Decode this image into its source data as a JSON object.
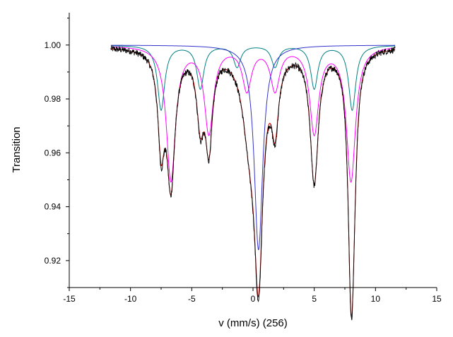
{
  "chart_data": {
    "type": "line",
    "title": "",
    "xlabel": "v (mm/s) (256)",
    "ylabel": "Transition",
    "xlim": [
      -15,
      15
    ],
    "ylim": [
      0.91,
      1.012
    ],
    "x_ticks": [
      -15,
      -10,
      -5,
      0,
      5,
      10,
      15
    ],
    "x_tick_labels": [
      "-15",
      "-10",
      "-5",
      "0",
      "5",
      "10",
      "15"
    ],
    "y_ticks": [
      0.92,
      0.94,
      0.96,
      0.98,
      1.0
    ],
    "y_tick_labels": [
      "0.92",
      "0.94",
      "0.96",
      "0.98",
      "1.00"
    ],
    "grid": false,
    "legend": "none",
    "x_range": [
      -11.6,
      11.6
    ],
    "series": [
      {
        "role": "measured",
        "color": "#000000",
        "baseline": 0.9995,
        "noise": 0.0012,
        "lines": [
          {
            "center": -7.5,
            "depth": 0.034,
            "width": 0.32
          },
          {
            "center": -6.7,
            "depth": 0.049,
            "width": 0.4
          },
          {
            "center": -4.3,
            "depth": 0.025,
            "width": 0.35
          },
          {
            "center": -3.6,
            "depth": 0.034,
            "width": 0.35
          },
          {
            "center": -0.3,
            "depth": 0.026,
            "width": 0.7
          },
          {
            "center": 0.45,
            "depth": 0.08,
            "width": 0.42
          },
          {
            "center": 1.8,
            "depth": 0.026,
            "width": 0.35
          },
          {
            "center": 5.0,
            "depth": 0.049,
            "width": 0.4
          },
          {
            "center": 8.0,
            "depth": 0.078,
            "width": 0.3
          },
          {
            "center": 8.2,
            "depth": 0.03,
            "width": 0.3
          }
        ]
      },
      {
        "role": "fit-total",
        "color": "#cc0000",
        "baseline": 0.9995,
        "lines": [
          {
            "center": -7.5,
            "depth": 0.033,
            "width": 0.32
          },
          {
            "center": -6.7,
            "depth": 0.049,
            "width": 0.4
          },
          {
            "center": -4.3,
            "depth": 0.024,
            "width": 0.35
          },
          {
            "center": -3.6,
            "depth": 0.034,
            "width": 0.35
          },
          {
            "center": -0.3,
            "depth": 0.026,
            "width": 0.7
          },
          {
            "center": 0.45,
            "depth": 0.078,
            "width": 0.42
          },
          {
            "center": 1.8,
            "depth": 0.025,
            "width": 0.35
          },
          {
            "center": 5.0,
            "depth": 0.049,
            "width": 0.4
          },
          {
            "center": 8.0,
            "depth": 0.077,
            "width": 0.3
          },
          {
            "center": 8.2,
            "depth": 0.03,
            "width": 0.3
          }
        ]
      },
      {
        "role": "sextet-1",
        "color": "#ff00ff",
        "baseline": 1.0,
        "lines": [
          {
            "center": -6.7,
            "depth": 0.05,
            "width": 0.45
          },
          {
            "center": -3.6,
            "depth": 0.032,
            "width": 0.45
          },
          {
            "center": -0.5,
            "depth": 0.016,
            "width": 0.45
          },
          {
            "center": 1.8,
            "depth": 0.016,
            "width": 0.45
          },
          {
            "center": 5.0,
            "depth": 0.032,
            "width": 0.45
          },
          {
            "center": 8.0,
            "depth": 0.05,
            "width": 0.45
          }
        ]
      },
      {
        "role": "sextet-2",
        "color": "#008080",
        "baseline": 1.0,
        "lines": [
          {
            "center": -7.5,
            "depth": 0.024,
            "width": 0.35
          },
          {
            "center": -4.3,
            "depth": 0.016,
            "width": 0.35
          },
          {
            "center": -1.3,
            "depth": 0.008,
            "width": 0.35
          },
          {
            "center": 1.8,
            "depth": 0.008,
            "width": 0.35
          },
          {
            "center": 5.0,
            "depth": 0.016,
            "width": 0.35
          },
          {
            "center": 8.1,
            "depth": 0.024,
            "width": 0.35
          }
        ]
      },
      {
        "role": "singlet",
        "color": "#3333cc",
        "baseline": 1.0,
        "lines": [
          {
            "center": 0.45,
            "depth": 0.076,
            "width": 0.42
          }
        ]
      }
    ]
  }
}
